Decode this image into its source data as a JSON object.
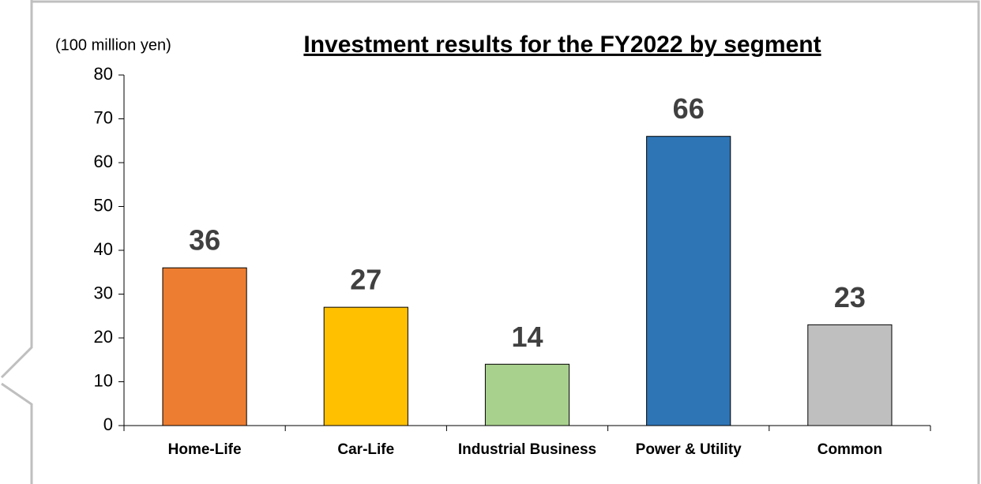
{
  "chart_data": {
    "type": "bar",
    "title": "Investment results for the FY2022 by segment",
    "y_label": "(100 million yen)",
    "categories": [
      "Home-Life",
      "Car-Life",
      "Industrial Business",
      "Power & Utility",
      "Common"
    ],
    "values": [
      36,
      27,
      14,
      66,
      23
    ],
    "colors": [
      "#ed7d31",
      "#ffc000",
      "#a9d18e",
      "#2e75b6",
      "#bfbfbf"
    ],
    "ylim": [
      0,
      80
    ],
    "yticks": [
      0,
      10,
      20,
      30,
      40,
      50,
      60,
      70,
      80
    ],
    "grid": false
  }
}
